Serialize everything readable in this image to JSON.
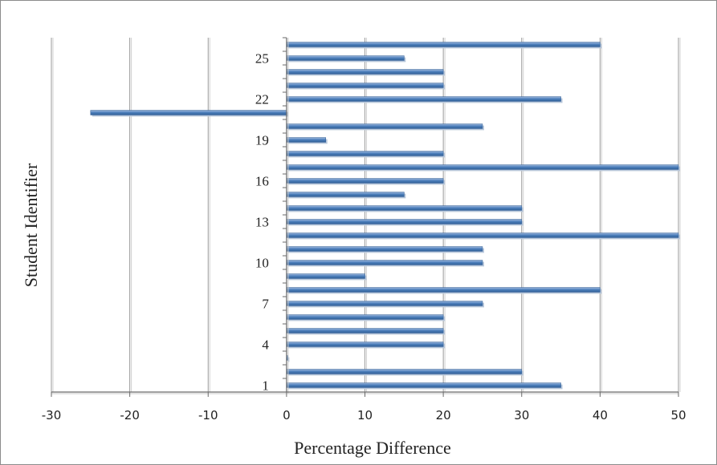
{
  "chart_data": {
    "type": "bar",
    "orientation": "horizontal",
    "title": "",
    "xlabel": "Percentage Difference",
    "ylabel": "Student Identifier",
    "xlim": [
      -30,
      50
    ],
    "x_ticks": [
      -30,
      -20,
      -10,
      0,
      10,
      20,
      30,
      40,
      50
    ],
    "categories": [
      "1",
      "2",
      "3",
      "4",
      "5",
      "6",
      "7",
      "8",
      "9",
      "10",
      "11",
      "12",
      "13",
      "14",
      "15",
      "16",
      "17",
      "18",
      "19",
      "20",
      "21",
      "22",
      "23",
      "24",
      "25",
      "26"
    ],
    "y_tick_labels": [
      {
        "category": "1",
        "label": "1"
      },
      {
        "category": "4",
        "label": "4"
      },
      {
        "category": "7",
        "label": "7"
      },
      {
        "category": "10",
        "label": "10"
      },
      {
        "category": "13",
        "label": "13"
      },
      {
        "category": "16",
        "label": "16"
      },
      {
        "category": "19",
        "label": "19"
      },
      {
        "category": "22",
        "label": "22"
      },
      {
        "category": "25",
        "label": "25"
      }
    ],
    "values": [
      35,
      30,
      0,
      20,
      20,
      20,
      25,
      40,
      10,
      25,
      25,
      50,
      30,
      30,
      15,
      20,
      50,
      20,
      5,
      25,
      -25,
      35,
      20,
      20,
      15,
      40
    ],
    "bar_color": "#4f81bd",
    "grid": {
      "vertical": true,
      "horizontal": false
    },
    "legend": "none"
  }
}
